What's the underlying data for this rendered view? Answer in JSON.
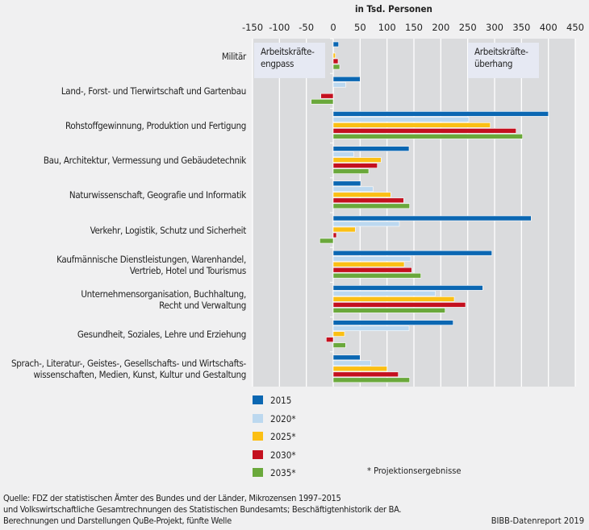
{
  "chart_data": {
    "type": "bar",
    "orientation": "horizontal",
    "title": "in Tsd. Personen",
    "xlim": [
      -150,
      450
    ],
    "xticks": [
      "-150",
      "-100",
      "-50",
      "0",
      "50",
      "100",
      "150",
      "200",
      "250",
      "300",
      "350",
      "400",
      "450"
    ],
    "grid": true,
    "legend_position": "bottom",
    "categories": [
      "Militär",
      "Land-, Forst- und Tierwirtschaft und Gartenbau",
      "Rohstoffgewinnung, Produktion und Fertigung",
      "Bau, Architektur, Vermessung und Gebäudetechnik",
      "Naturwissenschaft, Geografie und Informatik",
      "Verkehr, Logistik, Schutz und Sicherheit",
      "Kaufmännische Dienstleistungen, Warenhandel,\nVertrieb, Hotel und Tourismus",
      "Unternehmensorganisation, Buchhaltung,\nRecht und Verwaltung",
      "Gesundheit, Soziales, Lehre und Erziehung",
      "Sprach-, Literatur-, Geistes-, Gesellschafts- und Wirtschafts-\nwissenschaften, Medien, Kunst, Kultur und Gestaltung"
    ],
    "series": [
      {
        "name": "2015",
        "color": "#0b67b2",
        "values": [
          10,
          50,
          400,
          141,
          51,
          368,
          295,
          278,
          223,
          50
        ]
      },
      {
        "name": "2020*",
        "color": "#bcd8ef",
        "values": [
          1,
          23,
          252,
          38,
          74,
          123,
          144,
          190,
          141,
          70
        ]
      },
      {
        "name": "2025*",
        "color": "#fbbf14",
        "values": [
          4,
          0,
          292,
          89,
          107,
          41,
          132,
          225,
          21,
          100
        ]
      },
      {
        "name": "2030*",
        "color": "#c4101f",
        "values": [
          9,
          -23,
          340,
          82,
          131,
          6,
          146,
          246,
          -13,
          121
        ]
      },
      {
        "name": "2035*",
        "color": "#6aa83b",
        "values": [
          12,
          -41,
          352,
          66,
          142,
          -25,
          163,
          208,
          23,
          142
        ]
      }
    ],
    "annotations": {
      "left": "Arbeitskräfte-\nengpass",
      "right": "Arbeitskräfte-\nüberhang",
      "footnote": "* Projektionsergebnisse"
    }
  },
  "source": "Quelle: FDZ der statistischen Ämter des Bundes und der Länder, Mikrozensen 1997–2015\n            und Volkswirtschaftliche Gesamtrechnungen des Statistischen Bundesamts; Beschäftigtenhistorik der BA.\n            Berechnungen und Darstellungen QuBe-Projekt, fünfte Welle",
  "credit": "BIBB-Datenreport 2019"
}
